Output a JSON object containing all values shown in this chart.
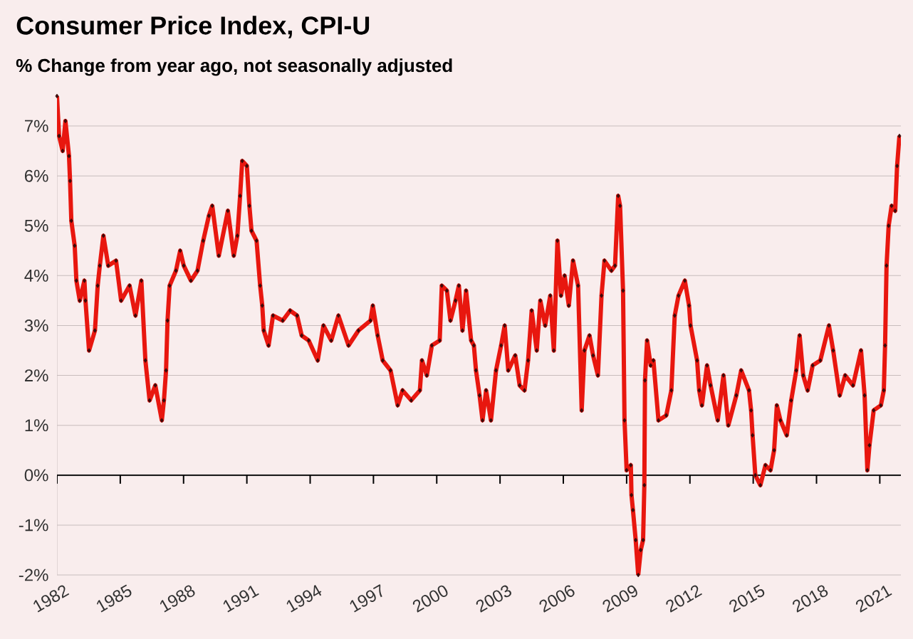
{
  "chart_data": {
    "type": "line",
    "title": "Consumer Price Index, CPI-U",
    "subtitle": "% Change from year ago, not seasonally adjusted",
    "x": [
      1982.0,
      1982.1,
      1982.27,
      1982.4,
      1982.57,
      1982.62,
      1982.68,
      1982.84,
      1982.92,
      1983.08,
      1983.3,
      1983.35,
      1983.52,
      1983.8,
      1983.93,
      1984.03,
      1984.2,
      1984.43,
      1984.8,
      1985.04,
      1985.44,
      1985.72,
      1986.0,
      1986.19,
      1986.39,
      1986.66,
      1986.97,
      1987.07,
      1987.17,
      1987.24,
      1987.34,
      1987.64,
      1987.84,
      1988.01,
      1988.35,
      1988.66,
      1988.93,
      1989.2,
      1989.36,
      1989.67,
      1990.1,
      1990.38,
      1990.55,
      1990.68,
      1990.78,
      1991.0,
      1991.12,
      1991.22,
      1991.46,
      1991.63,
      1991.73,
      1991.8,
      1992.03,
      1992.24,
      1992.7,
      1993.05,
      1993.38,
      1993.6,
      1993.93,
      1994.36,
      1994.63,
      1995.0,
      1995.34,
      1995.82,
      1996.29,
      1996.86,
      1996.97,
      1997.2,
      1997.44,
      1997.81,
      1998.15,
      1998.38,
      1998.79,
      1999.2,
      1999.3,
      1999.53,
      1999.77,
      2000.14,
      2000.24,
      2000.48,
      2000.65,
      2000.89,
      2001.05,
      2001.22,
      2001.39,
      2001.63,
      2001.76,
      2001.86,
      2002.03,
      2002.17,
      2002.34,
      2002.57,
      2002.81,
      2003.05,
      2003.22,
      2003.39,
      2003.72,
      2003.93,
      2004.16,
      2004.33,
      2004.5,
      2004.74,
      2004.91,
      2005.14,
      2005.38,
      2005.55,
      2005.72,
      2005.89,
      2006.06,
      2006.26,
      2006.46,
      2006.7,
      2006.87,
      2007.0,
      2007.24,
      2007.41,
      2007.64,
      2007.81,
      2007.95,
      2008.28,
      2008.45,
      2008.6,
      2008.69,
      2008.83,
      2008.9,
      2009.0,
      2009.2,
      2009.23,
      2009.3,
      2009.43,
      2009.55,
      2009.67,
      2009.78,
      2009.84,
      2009.87,
      2009.97,
      2010.14,
      2010.27,
      2010.51,
      2010.88,
      2011.12,
      2011.28,
      2011.46,
      2011.76,
      2011.96,
      2012.03,
      2012.34,
      2012.44,
      2012.57,
      2012.81,
      2012.98,
      2013.32,
      2013.59,
      2013.82,
      2014.2,
      2014.43,
      2014.8,
      2014.9,
      2014.97,
      2015.1,
      2015.34,
      2015.58,
      2015.82,
      2015.99,
      2016.12,
      2016.29,
      2016.59,
      2016.8,
      2017.04,
      2017.2,
      2017.37,
      2017.58,
      2017.82,
      2018.18,
      2018.59,
      2018.79,
      2019.1,
      2019.36,
      2019.73,
      2020.11,
      2020.28,
      2020.41,
      2020.51,
      2020.71,
      2021.05,
      2021.19,
      2021.25,
      2021.32,
      2021.42,
      2021.56,
      2021.73,
      2021.82,
      2021.93
    ],
    "series": [
      {
        "color": "#e8170f",
        "values": [
          7.6,
          6.8,
          6.5,
          7.1,
          6.4,
          5.9,
          5.1,
          4.6,
          3.9,
          3.5,
          3.9,
          3.5,
          2.5,
          2.9,
          3.8,
          4.2,
          4.8,
          4.2,
          4.3,
          3.5,
          3.8,
          3.2,
          3.9,
          2.3,
          1.5,
          1.8,
          1.1,
          1.5,
          2.1,
          3.1,
          3.8,
          4.1,
          4.5,
          4.2,
          3.9,
          4.1,
          4.7,
          5.2,
          5.4,
          4.4,
          5.3,
          4.4,
          4.8,
          5.6,
          6.3,
          6.2,
          5.4,
          4.9,
          4.7,
          3.8,
          3.4,
          2.9,
          2.6,
          3.2,
          3.1,
          3.3,
          3.2,
          2.8,
          2.7,
          2.3,
          3.0,
          2.7,
          3.2,
          2.6,
          2.9,
          3.1,
          3.4,
          2.8,
          2.3,
          2.1,
          1.4,
          1.7,
          1.5,
          1.7,
          2.3,
          2.0,
          2.6,
          2.7,
          3.8,
          3.7,
          3.1,
          3.5,
          3.8,
          2.9,
          3.7,
          2.7,
          2.6,
          2.1,
          1.6,
          1.1,
          1.7,
          1.1,
          2.1,
          2.6,
          3.0,
          2.1,
          2.4,
          1.8,
          1.7,
          2.3,
          3.3,
          2.5,
          3.5,
          3.0,
          3.6,
          2.5,
          4.7,
          3.6,
          4.0,
          3.4,
          4.3,
          3.8,
          1.3,
          2.5,
          2.8,
          2.4,
          2.0,
          3.6,
          4.3,
          4.1,
          4.2,
          5.6,
          5.4,
          3.7,
          1.1,
          0.1,
          0.2,
          -0.4,
          -0.7,
          -1.3,
          -2.0,
          -1.5,
          -1.3,
          -0.2,
          1.9,
          2.7,
          2.2,
          2.3,
          1.1,
          1.2,
          1.7,
          3.2,
          3.6,
          3.9,
          3.4,
          3.0,
          2.3,
          1.7,
          1.4,
          2.2,
          1.8,
          1.1,
          2.0,
          1.0,
          1.6,
          2.1,
          1.7,
          1.3,
          0.8,
          0.0,
          -0.2,
          0.2,
          0.1,
          0.5,
          1.4,
          1.1,
          0.8,
          1.5,
          2.1,
          2.8,
          2.0,
          1.7,
          2.2,
          2.3,
          3.0,
          2.5,
          1.6,
          2.0,
          1.8,
          2.5,
          1.6,
          0.1,
          0.6,
          1.3,
          1.4,
          1.7,
          2.6,
          4.2,
          5.0,
          5.4,
          5.3,
          6.2,
          6.8
        ]
      }
    ],
    "xlim": [
      1982,
      2022
    ],
    "ylim": [
      -2,
      7.6
    ],
    "xticks": [
      1982,
      1985,
      1988,
      1991,
      1994,
      1997,
      2000,
      2003,
      2006,
      2009,
      2012,
      2015,
      2018,
      2021
    ],
    "yticks": [
      {
        "value": -2,
        "label": "-2%"
      },
      {
        "value": -1,
        "label": "-1%"
      },
      {
        "value": 0,
        "label": "0%"
      },
      {
        "value": 1,
        "label": "1%"
      },
      {
        "value": 2,
        "label": "2%"
      },
      {
        "value": 3,
        "label": "3%"
      },
      {
        "value": 4,
        "label": "4%"
      },
      {
        "value": 5,
        "label": "5%"
      },
      {
        "value": 6,
        "label": "6%"
      },
      {
        "value": 7,
        "label": "7%"
      }
    ],
    "grid": "y",
    "marker": "diamond",
    "line_style": "solid"
  }
}
